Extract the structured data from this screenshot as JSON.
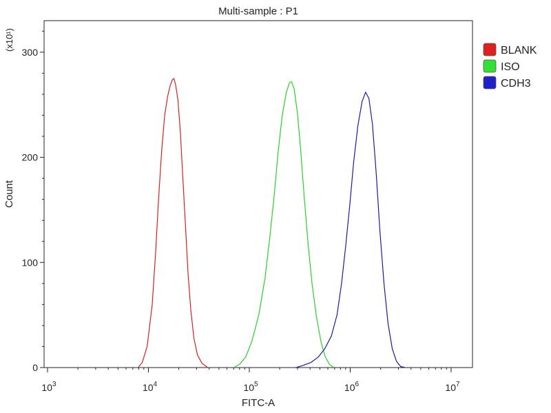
{
  "chart_data": {
    "type": "line",
    "title": "Multi-sample : P1",
    "xlabel": "FITC-A",
    "ylabel": "Count",
    "y_multiplier": "(x10¹)",
    "x_scale": "log",
    "xlim": [
      1000,
      10000000
    ],
    "ylim": [
      0,
      330
    ],
    "x_ticks": [
      {
        "value": 1000,
        "base": "10",
        "exp": "3"
      },
      {
        "value": 10000,
        "base": "10",
        "exp": "4"
      },
      {
        "value": 100000,
        "base": "10",
        "exp": "5"
      },
      {
        "value": 1000000,
        "base": "10",
        "exp": "6"
      },
      {
        "value": 10000000,
        "base": "10",
        "exp": "7"
      }
    ],
    "y_ticks": [
      0,
      100,
      200,
      300
    ],
    "grid": false,
    "legend_position": "right",
    "series": [
      {
        "name": "BLANK",
        "color": "#d62020",
        "legend_fill": "#e02020",
        "points": [
          [
            7900,
            0
          ],
          [
            8700,
            5
          ],
          [
            9700,
            20
          ],
          [
            10900,
            60
          ],
          [
            11800,
            110
          ],
          [
            12600,
            160
          ],
          [
            13500,
            205
          ],
          [
            14500,
            240
          ],
          [
            15500,
            258
          ],
          [
            16400,
            268
          ],
          [
            17300,
            274
          ],
          [
            17900,
            275
          ],
          [
            18600,
            269
          ],
          [
            19600,
            255
          ],
          [
            20700,
            225
          ],
          [
            21800,
            185
          ],
          [
            23300,
            135
          ],
          [
            24700,
            90
          ],
          [
            26300,
            55
          ],
          [
            28200,
            28
          ],
          [
            30600,
            12
          ],
          [
            34000,
            4
          ],
          [
            38700,
            0
          ]
        ]
      },
      {
        "name": "ISO",
        "color": "#2ad02a",
        "legend_fill": "#33e033",
        "points": [
          [
            70000,
            0
          ],
          [
            80000,
            3
          ],
          [
            92000,
            10
          ],
          [
            106000,
            25
          ],
          [
            124000,
            50
          ],
          [
            143000,
            85
          ],
          [
            160000,
            125
          ],
          [
            177000,
            165
          ],
          [
            193000,
            205
          ],
          [
            212000,
            240
          ],
          [
            233000,
            262
          ],
          [
            250000,
            271
          ],
          [
            262000,
            272
          ],
          [
            278000,
            265
          ],
          [
            300000,
            242
          ],
          [
            324000,
            205
          ],
          [
            350000,
            162
          ],
          [
            382000,
            118
          ],
          [
            418000,
            80
          ],
          [
            463000,
            48
          ],
          [
            512000,
            25
          ],
          [
            566000,
            10
          ],
          [
            624000,
            3
          ],
          [
            690000,
            0
          ]
        ]
      },
      {
        "name": "CDH3",
        "color": "#1a1aa0",
        "legend_fill": "#2020c8",
        "points": [
          [
            290000,
            0
          ],
          [
            340000,
            2
          ],
          [
            410000,
            5
          ],
          [
            482000,
            10
          ],
          [
            560000,
            18
          ],
          [
            650000,
            30
          ],
          [
            740000,
            50
          ],
          [
            820000,
            80
          ],
          [
            900000,
            115
          ],
          [
            990000,
            155
          ],
          [
            1080000,
            195
          ],
          [
            1190000,
            230
          ],
          [
            1310000,
            253
          ],
          [
            1420000,
            262
          ],
          [
            1530000,
            256
          ],
          [
            1660000,
            232
          ],
          [
            1810000,
            185
          ],
          [
            1970000,
            130
          ],
          [
            2160000,
            80
          ],
          [
            2370000,
            42
          ],
          [
            2610000,
            18
          ],
          [
            2870000,
            6
          ],
          [
            3160000,
            1
          ],
          [
            3500000,
            0
          ]
        ]
      }
    ]
  }
}
